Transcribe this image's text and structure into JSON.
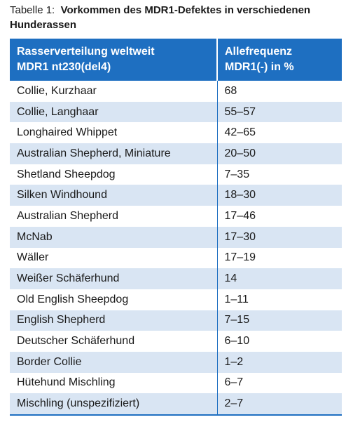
{
  "caption": {
    "label": "Tabelle 1:",
    "title": "Vorkommen des MDR1-Defektes in verschiedenen Hunderassen"
  },
  "table": {
    "header": [
      [
        "Rasserverteilung weltweit",
        "MDR1 nt230(del4)"
      ],
      [
        "Allefrequenz",
        "MDR1(-) in %"
      ]
    ],
    "rows": [
      [
        "Collie, Kurzhaar",
        "68"
      ],
      [
        "Collie, Langhaar",
        "55–57"
      ],
      [
        "Longhaired Whippet",
        "42–65"
      ],
      [
        "Australian Shepherd, Miniature",
        "20–50"
      ],
      [
        "Shetland Sheepdog",
        "7–35"
      ],
      [
        "Silken Windhound",
        "18–30"
      ],
      [
        "Australian Shepherd",
        "17–46"
      ],
      [
        "McNab",
        "17–30"
      ],
      [
        "Wäller",
        "17–19"
      ],
      [
        "Weißer Schäferhund",
        "14"
      ],
      [
        "Old English Sheepdog",
        "1–11"
      ],
      [
        "English Shepherd",
        "7–15"
      ],
      [
        "Deutscher Schäferhund",
        "6–10"
      ],
      [
        "Border Collie",
        "1–2"
      ],
      [
        "Hütehund Mischling",
        "6–7"
      ],
      [
        "Mischling (unspezifiziert)",
        "2–7"
      ]
    ]
  }
}
